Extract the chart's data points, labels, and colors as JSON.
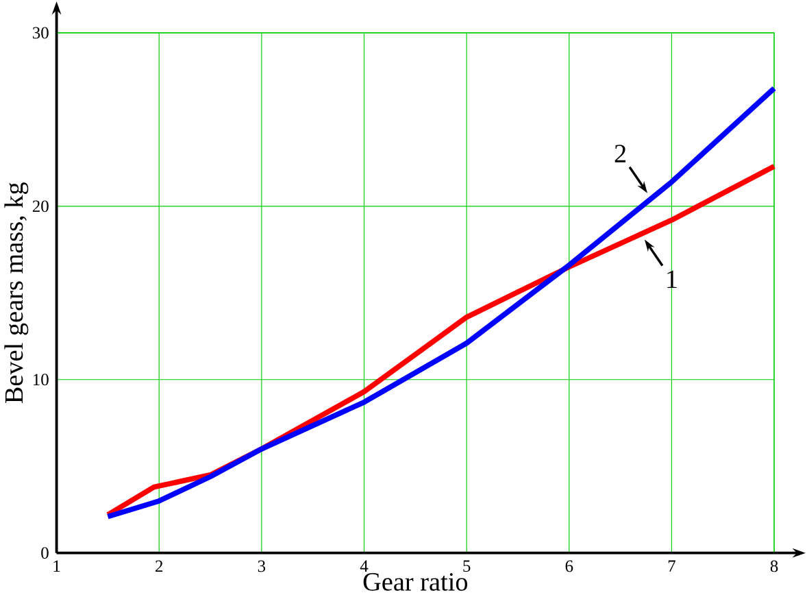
{
  "chart_data": {
    "type": "line",
    "xlabel": "Gear ratio",
    "ylabel": "Bevel gears mass, kg",
    "xlim": [
      1,
      8
    ],
    "ylim": [
      0,
      30
    ],
    "xticks": [
      1,
      2,
      3,
      4,
      5,
      6,
      7,
      8
    ],
    "yticks": [
      0,
      10,
      20,
      30
    ],
    "grid": true,
    "marker": "none",
    "line_style": "solid",
    "series": [
      {
        "name": "1",
        "color": "#ff0000",
        "x": [
          1.5,
          1.95,
          2.5,
          3,
          4,
          5,
          6,
          7,
          8
        ],
        "values": [
          2.2,
          3.8,
          4.5,
          6,
          9.3,
          13.6,
          16.5,
          19.2,
          22.3
        ]
      },
      {
        "name": "2",
        "color": "#0000ff",
        "x": [
          1.5,
          2,
          2.5,
          3,
          4,
          5,
          6,
          7,
          8
        ],
        "values": [
          2.1,
          3,
          4.4,
          6,
          8.7,
          12.1,
          16.6,
          21.4,
          26.8
        ]
      }
    ]
  }
}
